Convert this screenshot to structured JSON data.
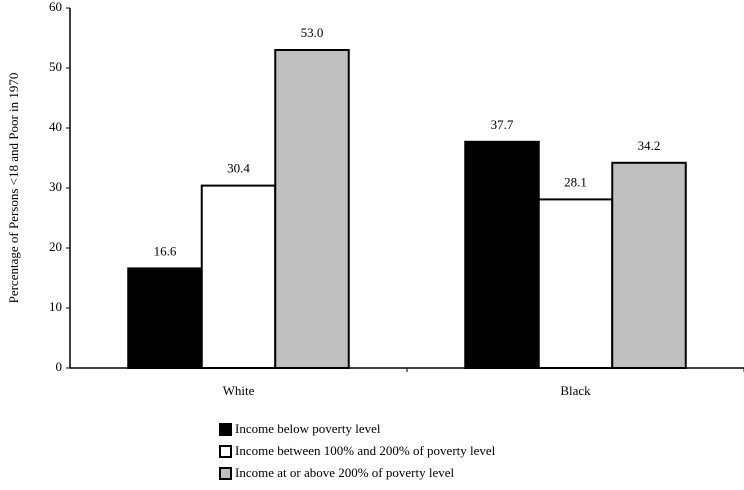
{
  "chart_data": {
    "type": "bar",
    "y_label": "Percentage of Persons <18 and Poor in 1970",
    "categories": [
      "White",
      "Black"
    ],
    "series": [
      {
        "name": "Income below poverty level",
        "color": "#000000",
        "values": [
          16.6,
          37.7
        ],
        "value_labels": [
          "16.6",
          "37.7"
        ]
      },
      {
        "name": "Income between 100% and 200% of poverty level",
        "color": "#ffffff",
        "values": [
          30.4,
          28.1
        ],
        "value_labels": [
          "30.4",
          "28.1"
        ]
      },
      {
        "name": "Income at or above 200% of poverty level",
        "color": "#c0c0c0",
        "values": [
          53,
          34.2
        ],
        "value_labels": [
          "53.0",
          "34.2"
        ]
      }
    ],
    "ylim": [
      0,
      60
    ],
    "yticks": [
      0,
      10,
      20,
      30,
      40,
      50,
      60
    ]
  }
}
